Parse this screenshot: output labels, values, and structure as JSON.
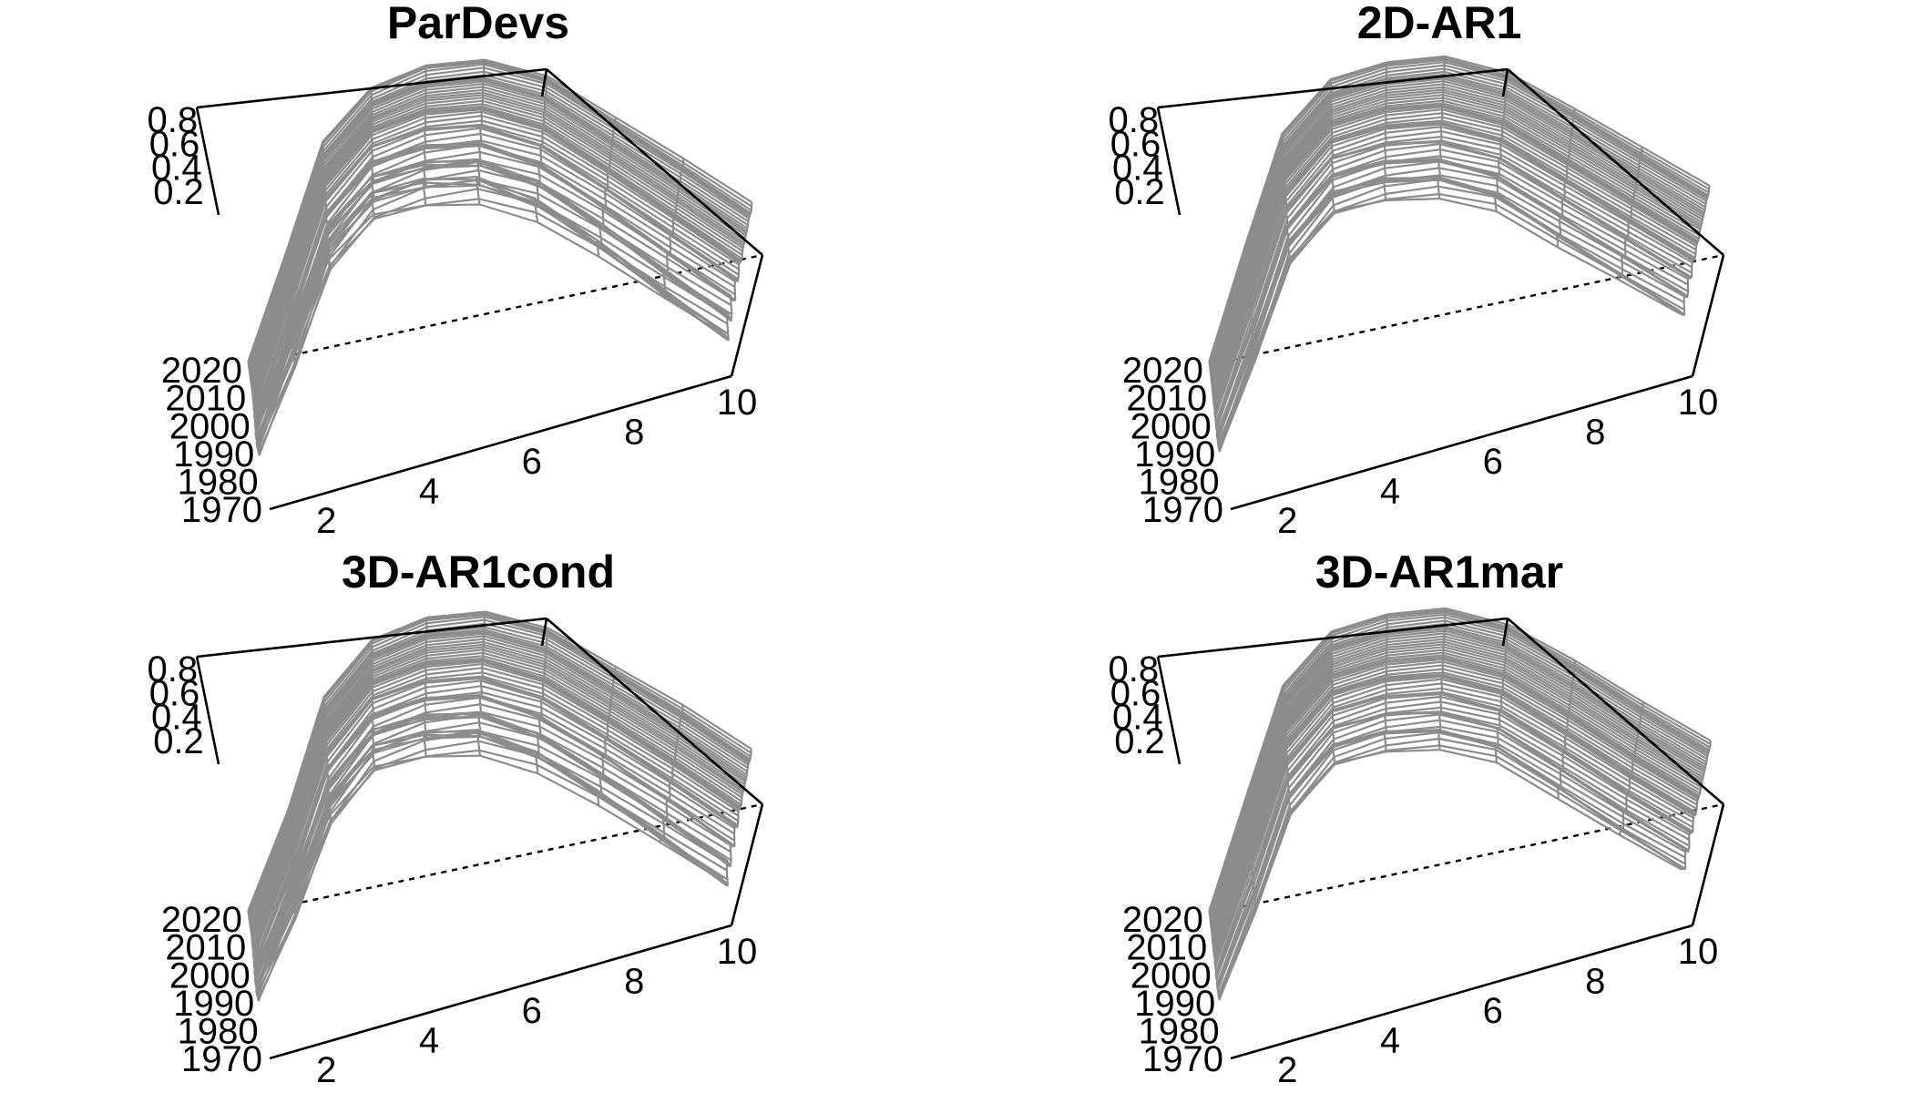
{
  "chart_data": [
    {
      "type": "surface",
      "title": "ParDevs",
      "x_ticks": [
        "2",
        "4",
        "6",
        "8",
        "10"
      ],
      "y_ticks": [
        "1970",
        "1980",
        "1990",
        "2000",
        "2010",
        "2020"
      ],
      "z_ticks": [
        "0.2",
        "0.4",
        "0.6",
        "0.8"
      ],
      "x_range": [
        1,
        10
      ],
      "y_range": [
        1970,
        2022
      ],
      "z_range": [
        0,
        0.9
      ],
      "ages": [
        1,
        2,
        3,
        4,
        5,
        6,
        7,
        8,
        9,
        10
      ],
      "profile": [
        0.08,
        0.4,
        0.72,
        0.86,
        0.88,
        0.85,
        0.74,
        0.55,
        0.35,
        0.15
      ],
      "trend": [
        0.12,
        0.06,
        0.03,
        0.02,
        0,
        -0.01,
        -0.02,
        -0.02,
        -0.03,
        -0.03
      ],
      "wiggle": 0.09,
      "mesh_color": "#8c8c8c"
    },
    {
      "type": "surface",
      "title": "2D-AR1",
      "x_ticks": [
        "2",
        "4",
        "6",
        "8",
        "10"
      ],
      "y_ticks": [
        "1970",
        "1980",
        "1990",
        "2000",
        "2010",
        "2020"
      ],
      "z_ticks": [
        "0.2",
        "0.4",
        "0.6",
        "0.8"
      ],
      "x_range": [
        1,
        10
      ],
      "y_range": [
        1970,
        2022
      ],
      "z_range": [
        0,
        0.9
      ],
      "ages": [
        1,
        2,
        3,
        4,
        5,
        6,
        7,
        8,
        9,
        10
      ],
      "profile": [
        0.1,
        0.42,
        0.74,
        0.88,
        0.89,
        0.86,
        0.76,
        0.58,
        0.4,
        0.22
      ],
      "trend": [
        0.1,
        0.05,
        0.02,
        0.01,
        0,
        -0.01,
        -0.01,
        -0.02,
        -0.02,
        -0.02
      ],
      "wiggle": 0.06,
      "mesh_color": "#8c8c8c"
    },
    {
      "type": "surface",
      "title": "3D-AR1cond",
      "x_ticks": [
        "2",
        "4",
        "6",
        "8",
        "10"
      ],
      "y_ticks": [
        "1970",
        "1980",
        "1990",
        "2000",
        "2010",
        "2020"
      ],
      "z_ticks": [
        "0.2",
        "0.4",
        "0.6",
        "0.8"
      ],
      "x_range": [
        1,
        10
      ],
      "y_range": [
        1970,
        2022
      ],
      "z_range": [
        0,
        0.9
      ],
      "ages": [
        1,
        2,
        3,
        4,
        5,
        6,
        7,
        8,
        9,
        10
      ],
      "profile": [
        0.09,
        0.38,
        0.7,
        0.85,
        0.87,
        0.84,
        0.73,
        0.55,
        0.36,
        0.16
      ],
      "trend": [
        0.12,
        0.07,
        0.03,
        0.02,
        0,
        -0.01,
        -0.02,
        -0.02,
        -0.03,
        -0.03
      ],
      "wiggle": 0.08,
      "mesh_color": "#8c8c8c"
    },
    {
      "type": "surface",
      "title": "3D-AR1mar",
      "x_ticks": [
        "2",
        "4",
        "6",
        "8",
        "10"
      ],
      "y_ticks": [
        "1970",
        "1980",
        "1990",
        "2000",
        "2010",
        "2020"
      ],
      "z_ticks": [
        "0.2",
        "0.4",
        "0.6",
        "0.8"
      ],
      "x_range": [
        1,
        10
      ],
      "y_range": [
        1970,
        2022
      ],
      "z_range": [
        0,
        0.9
      ],
      "ages": [
        1,
        2,
        3,
        4,
        5,
        6,
        7,
        8,
        9,
        10
      ],
      "profile": [
        0.1,
        0.41,
        0.73,
        0.87,
        0.88,
        0.85,
        0.75,
        0.57,
        0.38,
        0.2
      ],
      "trend": [
        0.1,
        0.05,
        0.02,
        0.01,
        0,
        -0.01,
        -0.01,
        -0.02,
        -0.02,
        -0.02
      ],
      "wiggle": 0.05,
      "mesh_color": "#8c8c8c"
    }
  ]
}
